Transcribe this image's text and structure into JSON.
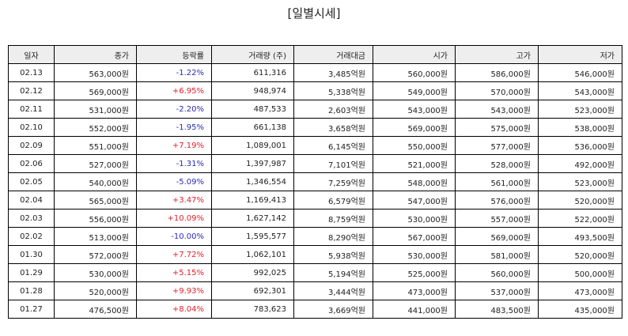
{
  "title": "[일별시세]",
  "columns": [
    "일자",
    "종가",
    "등락률",
    "거래량 (주)",
    "거래대금",
    "시가",
    "고가",
    "저가"
  ],
  "colors": {
    "up": "#e0202b",
    "down": "#2a2ab5",
    "header_bg": "#eeeeee"
  },
  "rows": [
    {
      "date": "02.13",
      "close": "563,000원",
      "change": "-1.22%",
      "volume": "611,316",
      "amount": "3,485억원",
      "open": "560,000원",
      "high": "586,000원",
      "low": "546,000원"
    },
    {
      "date": "02.12",
      "close": "569,000원",
      "change": "+6.95%",
      "volume": "948,974",
      "amount": "5,338억원",
      "open": "549,000원",
      "high": "570,000원",
      "low": "543,000원"
    },
    {
      "date": "02.11",
      "close": "531,000원",
      "change": "-2.20%",
      "volume": "487,533",
      "amount": "2,603억원",
      "open": "543,000원",
      "high": "543,000원",
      "low": "523,000원"
    },
    {
      "date": "02.10",
      "close": "552,000원",
      "change": "-1.95%",
      "volume": "661,138",
      "amount": "3,658억원",
      "open": "569,000원",
      "high": "575,000원",
      "low": "538,000원"
    },
    {
      "date": "02.09",
      "close": "551,000원",
      "change": "+7.19%",
      "volume": "1,089,001",
      "amount": "6,145억원",
      "open": "550,000원",
      "high": "577,000원",
      "low": "536,000원"
    },
    {
      "date": "02.06",
      "close": "527,000원",
      "change": "-1.31%",
      "volume": "1,397,987",
      "amount": "7,101억원",
      "open": "521,000원",
      "high": "528,000원",
      "low": "492,000원"
    },
    {
      "date": "02.05",
      "close": "540,000원",
      "change": "-5.09%",
      "volume": "1,346,554",
      "amount": "7,259억원",
      "open": "548,000원",
      "high": "561,000원",
      "low": "523,000원"
    },
    {
      "date": "02.04",
      "close": "565,000원",
      "change": "+3.47%",
      "volume": "1,169,413",
      "amount": "6,579억원",
      "open": "547,000원",
      "high": "576,000원",
      "low": "520,000원"
    },
    {
      "date": "02.03",
      "close": "556,000원",
      "change": "+10.09%",
      "volume": "1,627,142",
      "amount": "8,759억원",
      "open": "530,000원",
      "high": "557,000원",
      "low": "522,000원"
    },
    {
      "date": "02.02",
      "close": "513,000원",
      "change": "-10.00%",
      "volume": "1,595,577",
      "amount": "8,290억원",
      "open": "567,000원",
      "high": "569,000원",
      "low": "493,500원"
    },
    {
      "date": "01.30",
      "close": "572,000원",
      "change": "+7.72%",
      "volume": "1,062,101",
      "amount": "5,938억원",
      "open": "530,000원",
      "high": "581,000원",
      "low": "520,000원"
    },
    {
      "date": "01.29",
      "close": "530,000원",
      "change": "+5.15%",
      "volume": "992,025",
      "amount": "5,194억원",
      "open": "525,000원",
      "high": "560,000원",
      "low": "500,000원"
    },
    {
      "date": "01.28",
      "close": "520,000원",
      "change": "+9.93%",
      "volume": "692,301",
      "amount": "3,444억원",
      "open": "473,000원",
      "high": "537,000원",
      "low": "473,000원"
    },
    {
      "date": "01.27",
      "close": "476,500원",
      "change": "+8.04%",
      "volume": "783,623",
      "amount": "3,669억원",
      "open": "441,000원",
      "high": "483,500원",
      "low": "435,000원"
    }
  ]
}
